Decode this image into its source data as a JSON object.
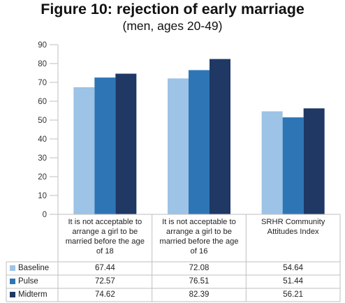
{
  "title": "Figure 10: rejection of early marriage",
  "subtitle": "(men, ages 20-49)",
  "colors": {
    "Baseline": "#9dc3e6",
    "Pulse": "#2e75b6",
    "Midterm": "#1f3864"
  },
  "chart_data": {
    "type": "bar",
    "categories": [
      "It is not acceptable to arrange a girl to be married before the age of 18",
      "It is not acceptable to arrange a girl to be married before the age of 16",
      "SRHR Community Attitudes Index"
    ],
    "series": [
      {
        "name": "Baseline",
        "values": [
          "67.44",
          "72.08",
          "54.64"
        ]
      },
      {
        "name": "Pulse",
        "values": [
          "72.57",
          "76.51",
          "51.44"
        ]
      },
      {
        "name": "Midterm",
        "values": [
          "74.62",
          "82.39",
          "56.21"
        ]
      }
    ],
    "yticks": [
      "0",
      "10",
      "20",
      "30",
      "40",
      "50",
      "60",
      "70",
      "80",
      "90"
    ],
    "ylim": [
      0,
      90
    ],
    "grid": false,
    "legend": "data-table"
  }
}
